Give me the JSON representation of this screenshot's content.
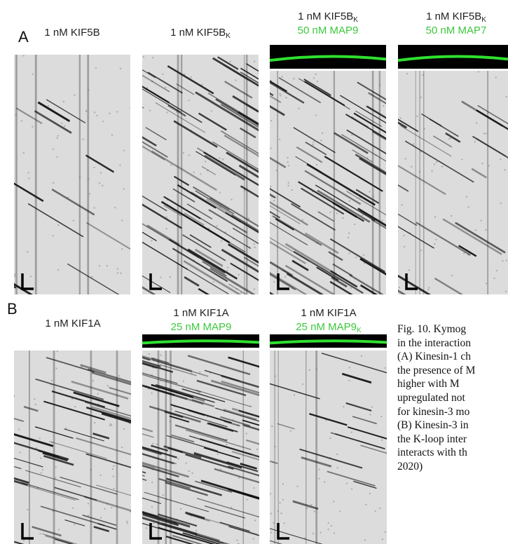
{
  "panel_a": {
    "label": "A",
    "kymographs": [
      {
        "title": "1 nM KIF5B"
      },
      {
        "title": "1 nM KIF5B",
        "title_sub": "K"
      },
      {
        "title": "1 nM KIF5B",
        "title_sub": "K",
        "condition": "50 nM MAP9"
      },
      {
        "title": "1 nM KIF5B",
        "title_sub": "K",
        "condition": "50 nM MAP7"
      }
    ]
  },
  "panel_b": {
    "label": "B",
    "kymographs": [
      {
        "title": "1 nM KIF1A"
      },
      {
        "title": "1 nM KIF1A",
        "condition": "25 nM MAP9"
      },
      {
        "title": "1 nM KIF1A",
        "condition": "25 nM MAP9",
        "condition_sub": "K"
      }
    ]
  },
  "caption": {
    "lines": [
      "Fig. 10. Kymog",
      "in the interaction",
      "(A) Kinesin-1 ch",
      "the presence of M",
      "higher with M",
      "upregulated not",
      "for kinesin-3 mo",
      "(B) Kinesin-3 in",
      "the K-loop inter",
      "interacts with th",
      "2020)"
    ]
  }
}
